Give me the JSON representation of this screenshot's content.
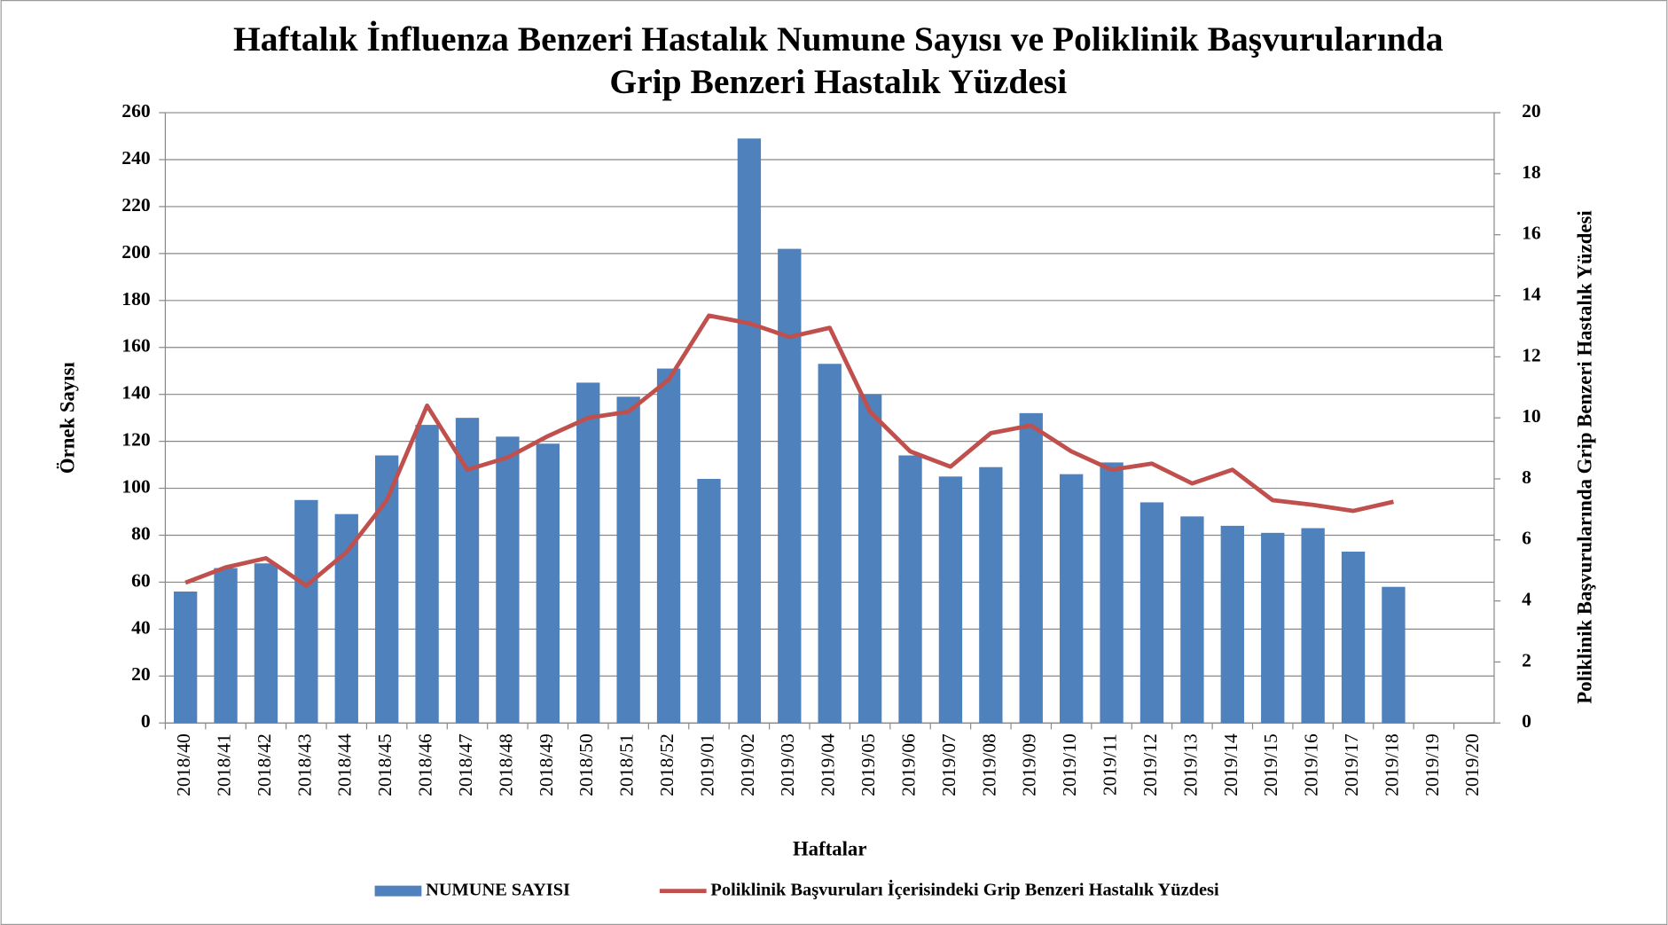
{
  "chart_data": {
    "type": "bar-line",
    "title": "Haftalık İnfluenza Benzeri Hastalık Numune Sayısı ve Poliklinik Başvurularında",
    "subtitle": "Grip Benzeri Hastalık Yüzdesi",
    "x_label": "Haftalar",
    "y_label": "Örnek Sayısı",
    "y2_label": "Poliklinik Başvurularında Grip Benzeri Hastalık Yüzdesi",
    "categories": [
      "2018/40",
      "2018/41",
      "2018/42",
      "2018/43",
      "2018/44",
      "2018/45",
      "2018/46",
      "2018/47",
      "2018/48",
      "2018/49",
      "2018/50",
      "2018/51",
      "2018/52",
      "2019/01",
      "2019/02",
      "2019/03",
      "2019/04",
      "2019/05",
      "2019/06",
      "2019/07",
      "2019/08",
      "2019/09",
      "2019/10",
      "2019/11",
      "2019/12",
      "2019/13",
      "2019/14",
      "2019/15",
      "2019/16",
      "2019/17",
      "2019/18",
      "2019/19",
      "2019/20"
    ],
    "series": [
      {
        "name": "NUMUNE SAYISI",
        "type": "bar",
        "color": "#4f81bd",
        "values": [
          56,
          66,
          68,
          95,
          89,
          114,
          127,
          130,
          122,
          119,
          145,
          139,
          151,
          104,
          249,
          202,
          153,
          140,
          114,
          105,
          109,
          132,
          106,
          111,
          94,
          88,
          84,
          81,
          83,
          73,
          58,
          null,
          null
        ]
      },
      {
        "name": "Poliklinik Başvuruları İçerisindeki Grip Benzeri Hastalık Yüzdesi",
        "type": "line",
        "axis": "y2",
        "color": "#c0504d",
        "values": [
          4.6,
          5.1,
          5.4,
          4.5,
          5.6,
          7.3,
          10.4,
          8.3,
          8.7,
          9.4,
          10.0,
          10.2,
          11.25,
          13.35,
          13.1,
          12.65,
          12.95,
          10.2,
          8.9,
          8.4,
          9.5,
          9.75,
          8.9,
          8.3,
          8.5,
          7.85,
          8.3,
          7.3,
          7.15,
          6.95,
          7.25,
          null,
          null
        ]
      }
    ],
    "ylim": [
      0,
      260
    ],
    "yticks": [
      0,
      20,
      40,
      60,
      80,
      100,
      120,
      140,
      160,
      180,
      200,
      220,
      240,
      260
    ],
    "y2lim": [
      0,
      20
    ],
    "y2ticks": [
      0,
      2,
      4,
      6,
      8,
      10,
      12,
      14,
      16,
      18,
      20
    ],
    "grid": true,
    "legend": "bottom"
  }
}
